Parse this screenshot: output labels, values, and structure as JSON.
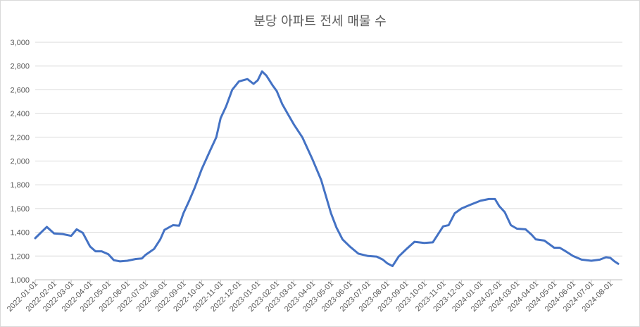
{
  "chart_data": {
    "type": "line",
    "title": "분당 아파트 전세 매물 수",
    "xlabel": "",
    "ylabel": "",
    "ylim": [
      1000,
      3000
    ],
    "yticks": [
      1000,
      1200,
      1400,
      1600,
      1800,
      2000,
      2200,
      2400,
      2600,
      2800,
      3000
    ],
    "ytick_labels": [
      "1,000",
      "1,200",
      "1,400",
      "1,600",
      "1,800",
      "2,000",
      "2,200",
      "2,400",
      "2,600",
      "2,800",
      "3,000"
    ],
    "grid": true,
    "legend": "none",
    "line_color": "#4472c4",
    "xticks": [
      "2022-01-01",
      "2022-02-01",
      "2022-03-01",
      "2022-04-01",
      "2022-05-01",
      "2022-06-01",
      "2022-07-01",
      "2022-08-01",
      "2022-09-01",
      "2022-10-01",
      "2022-11-01",
      "2022-12-01",
      "2023-01-01",
      "2023-02-01",
      "2023-03-01",
      "2023-04-01",
      "2023-05-01",
      "2023-06-01",
      "2023-07-01",
      "2023-08-01",
      "2023-09-01",
      "2023-10-01",
      "2023-11-01",
      "2023-12-01",
      "2024-01-01",
      "2024-02-01",
      "2024-03-01",
      "2024-04-01",
      "2024-05-01",
      "2024-06-01",
      "2024-07-01",
      "2024-08-01"
    ],
    "series": [
      {
        "points": [
          [
            "2022-01-01",
            1350
          ],
          [
            "2022-01-15",
            1420
          ],
          [
            "2022-01-20",
            1445
          ],
          [
            "2022-02-01",
            1390
          ],
          [
            "2022-02-15",
            1385
          ],
          [
            "2022-03-01",
            1370
          ],
          [
            "2022-03-10",
            1425
          ],
          [
            "2022-03-20",
            1395
          ],
          [
            "2022-04-01",
            1280
          ],
          [
            "2022-04-10",
            1240
          ],
          [
            "2022-04-20",
            1240
          ],
          [
            "2022-05-01",
            1215
          ],
          [
            "2022-05-10",
            1165
          ],
          [
            "2022-05-20",
            1155
          ],
          [
            "2022-06-01",
            1160
          ],
          [
            "2022-06-15",
            1175
          ],
          [
            "2022-06-25",
            1180
          ],
          [
            "2022-07-01",
            1210
          ],
          [
            "2022-07-15",
            1260
          ],
          [
            "2022-07-25",
            1340
          ],
          [
            "2022-08-01",
            1420
          ],
          [
            "2022-08-15",
            1460
          ],
          [
            "2022-08-25",
            1455
          ],
          [
            "2022-09-01",
            1560
          ],
          [
            "2022-09-10",
            1660
          ],
          [
            "2022-09-20",
            1780
          ],
          [
            "2022-10-01",
            1930
          ],
          [
            "2022-10-15",
            2090
          ],
          [
            "2022-10-25",
            2200
          ],
          [
            "2022-11-01",
            2360
          ],
          [
            "2022-11-10",
            2460
          ],
          [
            "2022-11-20",
            2600
          ],
          [
            "2022-12-01",
            2670
          ],
          [
            "2022-12-15",
            2690
          ],
          [
            "2022-12-25",
            2650
          ],
          [
            "2023-01-01",
            2680
          ],
          [
            "2023-01-08",
            2755
          ],
          [
            "2023-01-15",
            2720
          ],
          [
            "2023-01-25",
            2640
          ],
          [
            "2023-02-01",
            2590
          ],
          [
            "2023-02-10",
            2480
          ],
          [
            "2023-02-20",
            2390
          ],
          [
            "2023-03-01",
            2310
          ],
          [
            "2023-03-15",
            2200
          ],
          [
            "2023-04-01",
            2010
          ],
          [
            "2023-04-15",
            1840
          ],
          [
            "2023-05-01",
            1560
          ],
          [
            "2023-05-10",
            1440
          ],
          [
            "2023-05-20",
            1340
          ],
          [
            "2023-06-01",
            1280
          ],
          [
            "2023-06-15",
            1220
          ],
          [
            "2023-07-01",
            1200
          ],
          [
            "2023-07-15",
            1195
          ],
          [
            "2023-07-25",
            1170
          ],
          [
            "2023-08-01",
            1140
          ],
          [
            "2023-08-10",
            1115
          ],
          [
            "2023-08-20",
            1195
          ],
          [
            "2023-09-01",
            1255
          ],
          [
            "2023-09-15",
            1320
          ],
          [
            "2023-10-01",
            1310
          ],
          [
            "2023-10-15",
            1315
          ],
          [
            "2023-11-01",
            1450
          ],
          [
            "2023-11-10",
            1460
          ],
          [
            "2023-11-20",
            1560
          ],
          [
            "2023-12-01",
            1600
          ],
          [
            "2023-12-15",
            1630
          ],
          [
            "2024-01-01",
            1665
          ],
          [
            "2024-01-15",
            1680
          ],
          [
            "2024-01-25",
            1680
          ],
          [
            "2024-02-01",
            1620
          ],
          [
            "2024-02-10",
            1570
          ],
          [
            "2024-02-20",
            1460
          ],
          [
            "2024-03-01",
            1430
          ],
          [
            "2024-03-15",
            1425
          ],
          [
            "2024-03-25",
            1380
          ],
          [
            "2024-04-01",
            1340
          ],
          [
            "2024-04-15",
            1330
          ],
          [
            "2024-05-01",
            1270
          ],
          [
            "2024-05-10",
            1270
          ],
          [
            "2024-05-20",
            1240
          ],
          [
            "2024-06-01",
            1200
          ],
          [
            "2024-06-15",
            1170
          ],
          [
            "2024-07-01",
            1160
          ],
          [
            "2024-07-15",
            1170
          ],
          [
            "2024-07-25",
            1190
          ],
          [
            "2024-08-01",
            1185
          ],
          [
            "2024-08-08",
            1155
          ],
          [
            "2024-08-14",
            1135
          ]
        ]
      }
    ]
  }
}
